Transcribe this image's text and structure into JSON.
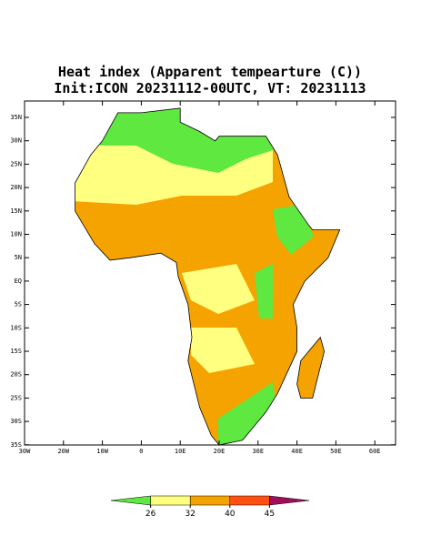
{
  "title": [
    "Heat index (Apparent tempearture (C))",
    "Init:ICON 20231112-00UTC, VT: 20231113"
  ],
  "map": {
    "lat_labels": [
      "35N",
      "30N",
      "25N",
      "20N",
      "15N",
      "10N",
      "5N",
      "EQ",
      "5S",
      "10S",
      "15S",
      "20S",
      "25S",
      "30S",
      "35S"
    ],
    "lon_labels": [
      "30W",
      "20W",
      "10W",
      "0",
      "10E",
      "20E",
      "30E",
      "40E",
      "50E",
      "60E"
    ]
  },
  "colorbar": {
    "ticks": [
      26,
      32,
      40,
      45
    ],
    "colors": [
      "#5ee840",
      "#ffff80",
      "#f5a300",
      "#ff5010",
      "#a0105a"
    ]
  }
}
